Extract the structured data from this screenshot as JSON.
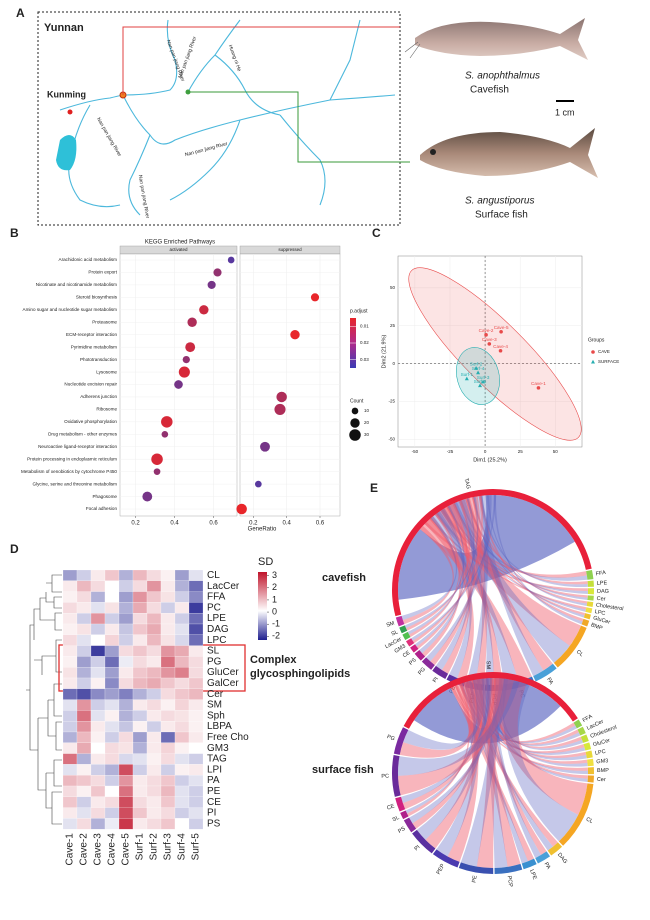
{
  "panel_labels": [
    "A",
    "B",
    "C",
    "D",
    "E"
  ],
  "map": {
    "region": "Yunnan",
    "city": "Kunming",
    "rivers": [
      "Nan pan jiang River",
      "Nan pan jiang River",
      "Huang ni He",
      "Nan pan jiang River",
      "Nan pan jiang River",
      "Nan pan jiang River"
    ],
    "fish": [
      {
        "species": "S. anophthalmus",
        "kind": "Cavefish"
      },
      {
        "species": "S. angustiporus",
        "kind": "Surface fish"
      }
    ],
    "scale_bar": "1 cm"
  },
  "chart_data": [
    {
      "type": "dot",
      "title": "KEGG Enriched Pathways",
      "facets": [
        "activated",
        "suppressed"
      ],
      "categories": [
        "Arachidonic acid metabolism",
        "Protein export",
        "Nicotinate and nicotinamide metabolism",
        "Steroid biosynthesis",
        "Amino sugar and nucleotide sugar metabolism",
        "Proteasome",
        "ECM-receptor interaction",
        "Pyrimidine metabolism",
        "Phototransduction",
        "Lysosome",
        "Nucleotide excision repair",
        "Adherens junction",
        "Ribosome",
        "Oxidative phosphorylation",
        "Drug metabolism - other enzymes",
        "Neuroactive ligand-receptor interaction",
        "Protein processing in endoplasmic reticulum",
        "Metabolism of xenobiotics by cytochrome P450",
        "Glycine, serine and threonine metabolism",
        "Phagosome",
        "Focal adhesion"
      ],
      "facet_index": [
        0,
        0,
        0,
        1,
        0,
        0,
        1,
        0,
        0,
        0,
        0,
        1,
        1,
        0,
        0,
        1,
        0,
        0,
        1,
        0,
        1
      ],
      "values": [
        0.69,
        0.62,
        0.59,
        0.57,
        0.55,
        0.49,
        0.45,
        0.48,
        0.46,
        0.45,
        0.42,
        0.37,
        0.36,
        0.36,
        0.35,
        0.27,
        0.31,
        0.31,
        0.23,
        0.26,
        0.13
      ],
      "counts": [
        10,
        15,
        15,
        15,
        20,
        20,
        20,
        22,
        12,
        28,
        17,
        25,
        28,
        30,
        10,
        22,
        30,
        10,
        10,
        22,
        25
      ],
      "p_adjust": [
        0.03,
        0.02,
        0.025,
        0.005,
        0.01,
        0.015,
        0.005,
        0.01,
        0.02,
        0.008,
        0.025,
        0.015,
        0.015,
        0.008,
        0.02,
        0.025,
        0.008,
        0.02,
        0.03,
        0.025,
        0.005
      ],
      "xlim": [
        0.12,
        0.72
      ],
      "xticks": [
        0.2,
        0.4,
        0.6
      ],
      "xlabel": "GeneRatio",
      "color_legend": {
        "title": "p.adjust",
        "lim": [
          0.005,
          0.035
        ],
        "ticks": [
          0.01,
          0.02,
          0.03
        ],
        "colors": [
          "#e8262a",
          "#3b3bb5"
        ]
      },
      "size_legend": {
        "title": "Count",
        "values": [
          10,
          20,
          30
        ]
      }
    },
    {
      "type": "scatter",
      "xlabel": "Dim1 (25.2%)",
      "ylabel": "Dim2 (21.9%)",
      "xlim": [
        -62,
        69
      ],
      "ylim": [
        -55,
        71
      ],
      "xticks": [
        -50,
        -25,
        0,
        25,
        50
      ],
      "yticks": [
        -50,
        -25,
        0,
        25,
        50
      ],
      "legend_title": "Groups",
      "series": [
        {
          "name": "CAVE",
          "color": "#e84a4a",
          "labels": [
            "Cave-5",
            "Cave-2",
            "Cave-4",
            "Cave-3",
            "Cave-1"
          ],
          "x": [
            11.4,
            0.7,
            11,
            3,
            38
          ],
          "y": [
            21,
            19,
            8.5,
            13,
            -16
          ]
        },
        {
          "name": "SURFACE",
          "color": "#26aeb0",
          "labels": [
            "Surf-2",
            "Surf-4",
            "Surf-1",
            "Surf-3",
            "Surf-5"
          ],
          "x": [
            -6.4,
            -5,
            -13,
            -1.4,
            -3.6
          ],
          "y": [
            -3,
            -6,
            -10,
            -12,
            -14.5
          ]
        }
      ]
    },
    {
      "type": "heatmap",
      "legend_title": "SD",
      "categories": [
        "CL",
        "LacCer",
        "FFA",
        "PC",
        "LPE",
        "DAG",
        "LPC",
        "SL",
        "PG",
        "GluCer",
        "GalCer",
        "Cer",
        "SM",
        "Sph",
        "LBPA",
        "Free Cho",
        "GM3",
        "TAG",
        "LPI",
        "PA",
        "PE",
        "CE",
        "PI",
        "PS"
      ],
      "columns": [
        "Cave-1",
        "Cave-2",
        "Cave-3",
        "Cave-4",
        "Cave-5",
        "Surf-1",
        "Surf-2",
        "Surf-3",
        "Surf-4",
        "Surf-5"
      ],
      "values": [
        [
          -1,
          -0.5,
          0.3,
          0.8,
          -0.8,
          1,
          0.5,
          0.2,
          -1,
          -0.3
        ],
        [
          0.3,
          1,
          0.5,
          0,
          -0.5,
          0.5,
          1.5,
          0.3,
          -0.8,
          -1.5
        ],
        [
          0.2,
          0.5,
          -0.8,
          0,
          -1,
          1.5,
          0.8,
          0.4,
          -0.5,
          -1.2
        ],
        [
          0.5,
          0.3,
          -0.3,
          0.4,
          -0.8,
          1.2,
          0.5,
          -0.5,
          0.3,
          -2
        ],
        [
          0.3,
          -0.5,
          1.5,
          -0.5,
          -1,
          0.5,
          1,
          0.3,
          -0.5,
          -1.5
        ],
        [
          0.2,
          0.4,
          -0.5,
          0.3,
          -0.6,
          0.8,
          1.2,
          0.3,
          -0.3,
          -1.8
        ],
        [
          0.5,
          -0.3,
          0,
          0.6,
          -0.5,
          0.3,
          1,
          0.4,
          -0.4,
          -1.5
        ],
        [
          0.3,
          -0.5,
          -2,
          -1,
          0.5,
          0.8,
          0.5,
          1.5,
          1.2,
          0.3
        ],
        [
          0.2,
          -1,
          -0.5,
          -1.5,
          -0.2,
          0.5,
          0.3,
          2,
          1,
          0.5
        ],
        [
          0.4,
          -0.8,
          -0.3,
          -1,
          0.3,
          0.8,
          1,
          1.5,
          1.8,
          0.5
        ],
        [
          0.3,
          -0.5,
          0.2,
          -1.2,
          0.5,
          1,
          1.2,
          0.8,
          0.5,
          0.8
        ],
        [
          -1.5,
          -1.8,
          -1.2,
          -1,
          -1.3,
          -0.8,
          -0.5,
          0.5,
          0.8,
          1
        ],
        [
          -0.3,
          1.5,
          -0.5,
          -0.3,
          -0.8,
          0.3,
          0.5,
          0.2,
          0.6,
          0.3
        ],
        [
          -0.5,
          2,
          -0.3,
          0.2,
          -0.8,
          -0.5,
          0.3,
          0.5,
          0.4,
          0.2
        ],
        [
          -0.5,
          1.5,
          0.3,
          -0.3,
          -0.6,
          0.2,
          -0.5,
          0.3,
          0.5,
          0.2
        ],
        [
          -0.8,
          1,
          0.2,
          -0.5,
          0.5,
          -1,
          0.3,
          -1.5,
          0.8,
          0.3
        ],
        [
          0.3,
          1.2,
          0,
          0.5,
          0.4,
          -0.8,
          0.3,
          0.6,
          0.2,
          0
        ],
        [
          2,
          -0.8,
          0.3,
          0.5,
          -0.4,
          -0.3,
          0.2,
          0.5,
          -0.3,
          -0.5
        ],
        [
          -0.3,
          0.2,
          -0.5,
          -0.8,
          2.5,
          -0.5,
          0.3,
          -0.5,
          0.2,
          0.3
        ],
        [
          1,
          0.8,
          0.5,
          -0.5,
          1.5,
          0.3,
          0.5,
          0.8,
          -0.5,
          -0.3
        ],
        [
          0.5,
          0.2,
          0.8,
          0,
          2,
          0.3,
          0.5,
          1,
          -0.3,
          -0.5
        ],
        [
          0.8,
          -0.5,
          0.3,
          0.5,
          2.5,
          0.5,
          0.3,
          0.8,
          -0.3,
          -0.5
        ],
        [
          0.3,
          -0.3,
          0.5,
          -0.5,
          2.5,
          0.8,
          0.3,
          0.5,
          -0.5,
          -0.3
        ],
        [
          -0.3,
          0.5,
          -0.8,
          -0.2,
          2.8,
          0.3,
          0.5,
          0.8,
          0,
          -0.5
        ]
      ],
      "clim": [
        -2.3,
        3.3
      ],
      "cticks": [
        3,
        2,
        1,
        0,
        -1,
        -2
      ],
      "colors": [
        "#1f1f8f",
        "#ffffff",
        "#c0142b"
      ],
      "annotation": [
        "Complex",
        "glycosphingolipids"
      ]
    },
    {
      "type": "chord",
      "title": "cavefish",
      "categories": [
        "TAG",
        "FFA",
        "LPE",
        "DAG",
        "Cer",
        "Cholesterol",
        "LPC",
        "GluCer",
        "BMP",
        "CL",
        "PA",
        "PC",
        "PCP",
        "PEP",
        "PE",
        "PI",
        "PG",
        "PS",
        "CE",
        "GM3",
        "LacCer",
        "SL",
        "SM"
      ],
      "sizes": [
        52,
        1.5,
        1,
        1,
        0.8,
        0.8,
        0.8,
        0.8,
        1,
        8,
        4,
        5,
        3,
        3,
        3,
        2.5,
        2,
        1.5,
        1,
        1,
        1,
        1,
        1.5
      ],
      "colors": [
        "#e8203a",
        "#8fd14f",
        "#c5e03a",
        "#d8e83a",
        "#a8d848",
        "#e8d83a",
        "#f0e040",
        "#f0c030",
        "#f0a828",
        "#f5a623",
        "#4aa0d8",
        "#3a70c0",
        "#3a50b0",
        "#4a3ab0",
        "#5a2fa0",
        "#6a2a9a",
        "#8a2a9a",
        "#b0208a",
        "#d02080",
        "#e0307a",
        "#50c050",
        "#30a050",
        "#c030a0"
      ]
    },
    {
      "type": "chord",
      "title": "surface fish",
      "categories": [
        "FFA",
        "LacCer",
        "Cholesterol",
        "GluCer",
        "LPC",
        "GM3",
        "BMP",
        "Cer",
        "CL",
        "DAG",
        "PA",
        "LPE",
        "PCP",
        "PE",
        "PEP",
        "PI",
        "PS",
        "SL",
        "CE",
        "PC",
        "PG",
        "SM"
      ],
      "sizes": [
        1,
        1,
        1,
        1,
        1,
        1,
        1,
        1,
        10,
        2,
        2,
        2,
        4,
        5,
        4,
        4,
        2,
        1,
        2,
        6,
        4,
        30
      ],
      "colors": [
        "#8fd14f",
        "#a8d848",
        "#c5e03a",
        "#d8e83a",
        "#e8d83a",
        "#f0e040",
        "#f0c030",
        "#f0a828",
        "#f5a623",
        "#f0c030",
        "#4aa0d8",
        "#3a90d0",
        "#3a70c0",
        "#3a50b0",
        "#4a3ab0",
        "#5a2fa0",
        "#8a2a9a",
        "#b0208a",
        "#d02080",
        "#6a2a9a",
        "#7a2aa0",
        "#e8203a"
      ]
    }
  ]
}
